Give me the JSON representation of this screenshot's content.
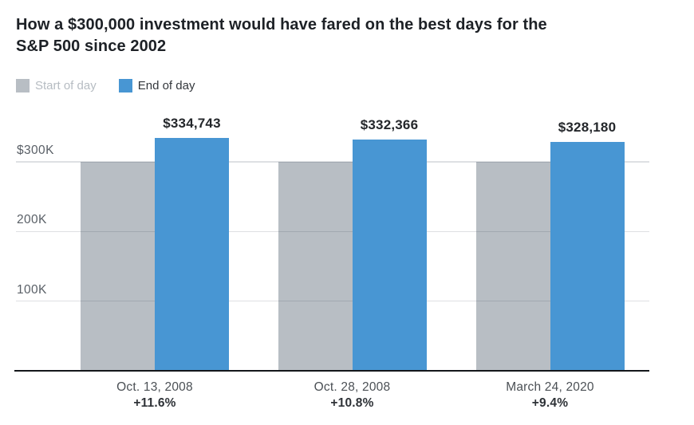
{
  "title": {
    "full": "How a $300,000 investment would have fared on the best days for the S&P 500 since 2002",
    "line1": "How a $300,000 investment would have fared on the best days for the",
    "line2": "S&P 500 since 2002"
  },
  "legend": {
    "start_label": "Start of day",
    "end_label": "End of day"
  },
  "colors": {
    "start_of_day": "#b8bec4",
    "end_of_day": "#4896d3",
    "gridline": "#32404e",
    "baseline": "#14171a"
  },
  "chart_data": {
    "type": "bar",
    "title": "How a $300,000 investment would have fared on the best days for the S&P 500 since 2002",
    "categories": [
      "Oct. 13, 2008",
      "Oct. 28, 2008",
      "March 24, 2020"
    ],
    "category_sublabels": [
      "+11.6%",
      "+10.8%",
      "+9.4%"
    ],
    "series": [
      {
        "name": "Start of day",
        "color": "#b8bec4",
        "values": [
          300000,
          300000,
          300000
        ]
      },
      {
        "name": "End of day",
        "color": "#4896d3",
        "values": [
          334743,
          332366,
          328180
        ]
      }
    ],
    "value_labels": [
      "$334,743",
      "$332,366",
      "$328,180"
    ],
    "y_axis": {
      "baseline_value": 0,
      "ticks": [
        {
          "label": "$300K",
          "value": 300000
        },
        {
          "label": "200K",
          "value": 200000
        },
        {
          "label": "100K",
          "value": 100000
        }
      ]
    },
    "grid": "horizontal",
    "legend_position": "top-left"
  }
}
